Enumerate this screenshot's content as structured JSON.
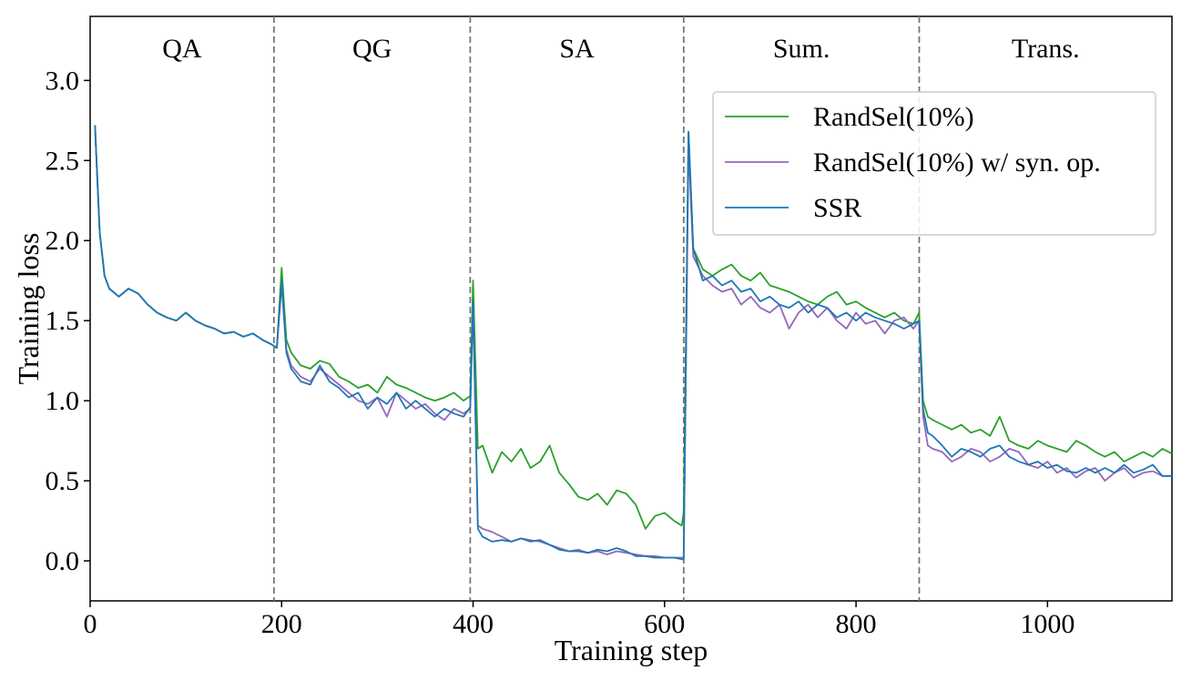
{
  "chart_data": {
    "type": "line",
    "title": "",
    "xlabel": "Training step",
    "ylabel": "Training loss",
    "xlim": [
      0,
      1130
    ],
    "ylim": [
      -0.25,
      3.4
    ],
    "xticks": [
      0,
      200,
      400,
      600,
      800,
      1000
    ],
    "xtick_labels": [
      "0",
      "200",
      "400",
      "600",
      "800",
      "1000"
    ],
    "yticks": [
      0.0,
      0.5,
      1.0,
      1.5,
      2.0,
      2.5,
      3.0
    ],
    "ytick_labels": [
      "0.0",
      "0.5",
      "1.0",
      "1.5",
      "2.0",
      "2.5",
      "3.0"
    ],
    "grid": false,
    "legend_position": "upper-right",
    "sections": [
      {
        "label": "QA",
        "start": 0,
        "end": 192
      },
      {
        "label": "QG",
        "start": 192,
        "end": 397
      },
      {
        "label": "SA",
        "start": 397,
        "end": 620
      },
      {
        "label": "Sum.",
        "start": 620,
        "end": 866
      },
      {
        "label": "Trans.",
        "start": 866,
        "end": 1130
      }
    ],
    "boundaries": [
      192,
      397,
      620,
      866
    ],
    "series": [
      {
        "name": "RandSel(10%)",
        "color": "#2ca02c",
        "x": [
          5,
          10,
          15,
          20,
          30,
          40,
          50,
          60,
          70,
          80,
          90,
          100,
          110,
          120,
          130,
          140,
          150,
          160,
          170,
          180,
          190,
          195,
          200,
          205,
          210,
          220,
          230,
          240,
          250,
          260,
          270,
          280,
          290,
          300,
          310,
          320,
          330,
          340,
          350,
          360,
          370,
          380,
          390,
          397,
          400,
          405,
          410,
          420,
          430,
          440,
          450,
          460,
          470,
          480,
          490,
          500,
          510,
          520,
          530,
          540,
          550,
          560,
          570,
          580,
          590,
          600,
          610,
          618,
          620,
          625,
          630,
          640,
          650,
          660,
          670,
          680,
          690,
          700,
          710,
          720,
          730,
          740,
          750,
          760,
          770,
          780,
          790,
          800,
          810,
          820,
          830,
          840,
          850,
          860,
          866,
          870,
          875,
          880,
          890,
          900,
          910,
          920,
          930,
          940,
          950,
          960,
          970,
          980,
          990,
          1000,
          1010,
          1020,
          1030,
          1040,
          1050,
          1060,
          1070,
          1080,
          1090,
          1100,
          1110,
          1120,
          1130
        ],
        "values": [
          2.72,
          2.05,
          1.78,
          1.7,
          1.65,
          1.7,
          1.67,
          1.6,
          1.55,
          1.52,
          1.5,
          1.55,
          1.5,
          1.47,
          1.45,
          1.42,
          1.43,
          1.4,
          1.42,
          1.38,
          1.35,
          1.33,
          1.83,
          1.38,
          1.3,
          1.22,
          1.2,
          1.25,
          1.23,
          1.15,
          1.12,
          1.08,
          1.1,
          1.05,
          1.15,
          1.1,
          1.08,
          1.05,
          1.02,
          1.0,
          1.02,
          1.05,
          1.0,
          1.03,
          1.75,
          0.7,
          0.72,
          0.55,
          0.68,
          0.62,
          0.7,
          0.58,
          0.62,
          0.72,
          0.55,
          0.48,
          0.4,
          0.38,
          0.42,
          0.35,
          0.44,
          0.42,
          0.35,
          0.2,
          0.28,
          0.3,
          0.25,
          0.22,
          0.3,
          2.68,
          1.95,
          1.82,
          1.78,
          1.82,
          1.85,
          1.78,
          1.75,
          1.8,
          1.72,
          1.7,
          1.68,
          1.65,
          1.62,
          1.6,
          1.65,
          1.68,
          1.6,
          1.62,
          1.58,
          1.55,
          1.52,
          1.55,
          1.5,
          1.48,
          1.55,
          1.0,
          0.9,
          0.88,
          0.85,
          0.82,
          0.85,
          0.8,
          0.82,
          0.78,
          0.9,
          0.75,
          0.72,
          0.7,
          0.75,
          0.72,
          0.7,
          0.68,
          0.75,
          0.72,
          0.68,
          0.65,
          0.68,
          0.62,
          0.65,
          0.68,
          0.65,
          0.7,
          0.67
        ]
      },
      {
        "name": "RandSel(10%) w/ syn. op.",
        "color": "#9467bd",
        "x": [
          5,
          10,
          15,
          20,
          30,
          40,
          50,
          60,
          70,
          80,
          90,
          100,
          110,
          120,
          130,
          140,
          150,
          160,
          170,
          180,
          190,
          195,
          200,
          205,
          210,
          220,
          230,
          240,
          250,
          260,
          270,
          280,
          290,
          300,
          310,
          320,
          330,
          340,
          350,
          360,
          370,
          380,
          390,
          397,
          400,
          405,
          410,
          420,
          430,
          440,
          450,
          460,
          470,
          480,
          490,
          500,
          510,
          520,
          530,
          540,
          550,
          560,
          570,
          580,
          590,
          600,
          610,
          618,
          620,
          625,
          630,
          640,
          650,
          660,
          670,
          680,
          690,
          700,
          710,
          720,
          730,
          740,
          750,
          760,
          770,
          780,
          790,
          800,
          810,
          820,
          830,
          840,
          850,
          860,
          866,
          870,
          875,
          880,
          890,
          900,
          910,
          920,
          930,
          940,
          950,
          960,
          970,
          980,
          990,
          1000,
          1010,
          1020,
          1030,
          1040,
          1050,
          1060,
          1070,
          1080,
          1090,
          1100,
          1110,
          1120,
          1130
        ],
        "values": [
          2.72,
          2.05,
          1.78,
          1.7,
          1.65,
          1.7,
          1.67,
          1.6,
          1.55,
          1.52,
          1.5,
          1.55,
          1.5,
          1.47,
          1.45,
          1.42,
          1.43,
          1.4,
          1.42,
          1.38,
          1.35,
          1.33,
          1.72,
          1.32,
          1.22,
          1.15,
          1.12,
          1.2,
          1.15,
          1.1,
          1.05,
          1.0,
          0.98,
          1.02,
          0.9,
          1.05,
          1.0,
          0.95,
          0.98,
          0.92,
          0.88,
          0.95,
          0.92,
          0.95,
          1.6,
          0.22,
          0.2,
          0.18,
          0.15,
          0.12,
          0.14,
          0.13,
          0.12,
          0.1,
          0.08,
          0.06,
          0.07,
          0.05,
          0.06,
          0.04,
          0.06,
          0.05,
          0.04,
          0.03,
          0.03,
          0.02,
          0.02,
          0.02,
          0.02,
          2.6,
          1.9,
          1.78,
          1.72,
          1.68,
          1.7,
          1.6,
          1.65,
          1.58,
          1.55,
          1.6,
          1.45,
          1.55,
          1.6,
          1.52,
          1.58,
          1.5,
          1.45,
          1.55,
          1.48,
          1.5,
          1.42,
          1.5,
          1.52,
          1.45,
          1.5,
          0.9,
          0.72,
          0.7,
          0.68,
          0.62,
          0.65,
          0.7,
          0.68,
          0.62,
          0.65,
          0.7,
          0.68,
          0.6,
          0.58,
          0.62,
          0.55,
          0.58,
          0.52,
          0.56,
          0.58,
          0.5,
          0.55,
          0.58,
          0.52,
          0.55,
          0.56,
          0.53,
          0.53
        ]
      },
      {
        "name": "SSR",
        "color": "#1f77b4",
        "x": [
          5,
          10,
          15,
          20,
          30,
          40,
          50,
          60,
          70,
          80,
          90,
          100,
          110,
          120,
          130,
          140,
          150,
          160,
          170,
          180,
          190,
          195,
          200,
          205,
          210,
          220,
          230,
          240,
          250,
          260,
          270,
          280,
          290,
          300,
          310,
          320,
          330,
          340,
          350,
          360,
          370,
          380,
          390,
          397,
          400,
          405,
          410,
          420,
          430,
          440,
          450,
          460,
          470,
          480,
          490,
          500,
          510,
          520,
          530,
          540,
          550,
          560,
          570,
          580,
          590,
          600,
          610,
          618,
          620,
          625,
          630,
          640,
          650,
          660,
          670,
          680,
          690,
          700,
          710,
          720,
          730,
          740,
          750,
          760,
          770,
          780,
          790,
          800,
          810,
          820,
          830,
          840,
          850,
          860,
          866,
          870,
          875,
          880,
          890,
          900,
          910,
          920,
          930,
          940,
          950,
          960,
          970,
          980,
          990,
          1000,
          1010,
          1020,
          1030,
          1040,
          1050,
          1060,
          1070,
          1080,
          1090,
          1100,
          1110,
          1120,
          1130
        ],
        "values": [
          2.72,
          2.05,
          1.78,
          1.7,
          1.65,
          1.7,
          1.67,
          1.6,
          1.55,
          1.52,
          1.5,
          1.55,
          1.5,
          1.47,
          1.45,
          1.42,
          1.43,
          1.4,
          1.42,
          1.38,
          1.35,
          1.33,
          1.75,
          1.3,
          1.2,
          1.12,
          1.1,
          1.22,
          1.12,
          1.08,
          1.02,
          1.05,
          0.95,
          1.02,
          0.98,
          1.05,
          0.95,
          1.0,
          0.95,
          0.9,
          0.95,
          0.92,
          0.9,
          0.96,
          1.62,
          0.2,
          0.15,
          0.12,
          0.13,
          0.12,
          0.14,
          0.12,
          0.13,
          0.1,
          0.07,
          0.06,
          0.06,
          0.05,
          0.07,
          0.06,
          0.08,
          0.06,
          0.03,
          0.03,
          0.02,
          0.02,
          0.02,
          0.01,
          0.01,
          2.68,
          1.95,
          1.75,
          1.78,
          1.72,
          1.75,
          1.68,
          1.7,
          1.62,
          1.65,
          1.6,
          1.58,
          1.62,
          1.55,
          1.6,
          1.58,
          1.52,
          1.55,
          1.5,
          1.55,
          1.52,
          1.5,
          1.48,
          1.45,
          1.48,
          1.5,
          0.95,
          0.8,
          0.78,
          0.72,
          0.65,
          0.7,
          0.68,
          0.65,
          0.7,
          0.72,
          0.65,
          0.62,
          0.6,
          0.62,
          0.58,
          0.6,
          0.56,
          0.55,
          0.58,
          0.55,
          0.58,
          0.55,
          0.6,
          0.55,
          0.57,
          0.6,
          0.53,
          0.53
        ]
      }
    ]
  }
}
